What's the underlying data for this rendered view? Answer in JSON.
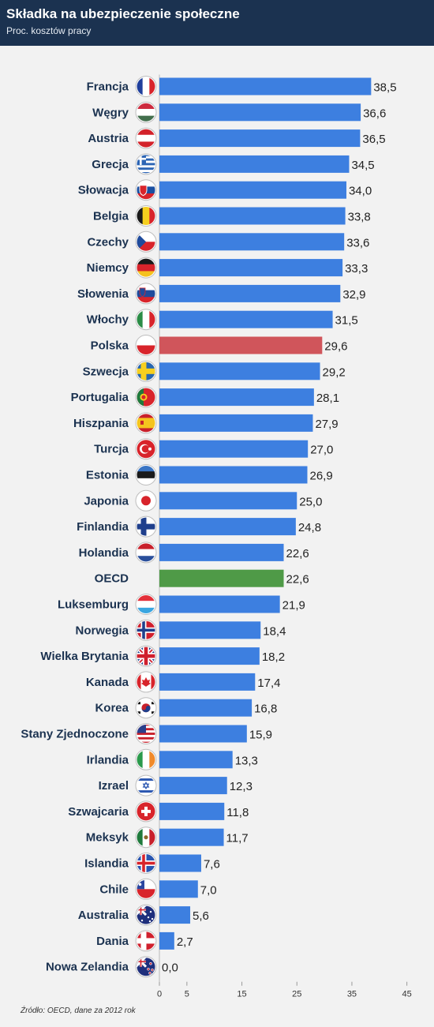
{
  "header": {
    "title": "Składka na ubezpieczenie społeczne",
    "subtitle": "Proc. kosztów pracy"
  },
  "footer": {
    "source": "Źródło: OECD, dane za 2012 rok"
  },
  "colors": {
    "bar": "#3d7fe0",
    "highlight_pl": "#d0555b",
    "highlight_oecd": "#4f9a47",
    "header_bg": "#1b3250"
  },
  "chart_data": {
    "type": "bar",
    "orientation": "horizontal",
    "categories": [
      "Francja",
      "Węgry",
      "Austria",
      "Grecja",
      "Słowacja",
      "Belgia",
      "Czechy",
      "Niemcy",
      "Słowenia",
      "Włochy",
      "Polska",
      "Szwecja",
      "Portugalia",
      "Hiszpania",
      "Turcja",
      "Estonia",
      "Japonia",
      "Finlandia",
      "Holandia",
      "OECD",
      "Luksemburg",
      "Norwegia",
      "Wielka Brytania",
      "Kanada",
      "Korea",
      "Stany Zjednoczone",
      "Irlandia",
      "Izrael",
      "Szwajcaria",
      "Meksyk",
      "Islandia",
      "Chile",
      "Australia",
      "Dania",
      "Nowa Zelandia"
    ],
    "values": [
      38.5,
      36.6,
      36.5,
      34.5,
      34.0,
      33.8,
      33.6,
      33.3,
      32.9,
      31.5,
      29.6,
      29.2,
      28.1,
      27.9,
      27.0,
      26.9,
      25.0,
      24.8,
      22.6,
      22.6,
      21.9,
      18.4,
      18.2,
      17.4,
      16.8,
      15.9,
      13.3,
      12.3,
      11.8,
      11.7,
      7.6,
      7.0,
      5.6,
      2.7,
      0.0
    ],
    "value_labels": [
      "38,5",
      "36,6",
      "36,5",
      "34,5",
      "34,0",
      "33,8",
      "33,6",
      "33,3",
      "32,9",
      "31,5",
      "29,6",
      "29,2",
      "28,1",
      "27,9",
      "27,0",
      "26,9",
      "25,0",
      "24,8",
      "22,6",
      "22,6",
      "21,9",
      "18,4",
      "18,2",
      "17,4",
      "16,8",
      "15,9",
      "13,3",
      "12,3",
      "11,8",
      "11,7",
      "7,6",
      "7,0",
      "5,6",
      "2,7",
      "0,0"
    ],
    "highlight": {
      "Polska": "highlight_pl",
      "OECD": "highlight_oecd"
    },
    "flags": [
      "flag-france-icon",
      "flag-hungary-icon",
      "flag-austria-icon",
      "flag-greece-icon",
      "flag-slovakia-icon",
      "flag-belgium-icon",
      "flag-czechia-icon",
      "flag-germany-icon",
      "flag-slovenia-icon",
      "flag-italy-icon",
      "flag-poland-icon",
      "flag-sweden-icon",
      "flag-portugal-icon",
      "flag-spain-icon",
      "flag-turkey-icon",
      "flag-estonia-icon",
      "flag-japan-icon",
      "flag-finland-icon",
      "flag-netherlands-icon",
      "",
      "flag-luxembourg-icon",
      "flag-norway-icon",
      "flag-uk-icon",
      "flag-canada-icon",
      "flag-korea-icon",
      "flag-usa-icon",
      "flag-ireland-icon",
      "flag-israel-icon",
      "flag-switzerland-icon",
      "flag-mexico-icon",
      "flag-iceland-icon",
      "flag-chile-icon",
      "flag-australia-icon",
      "flag-denmark-icon",
      "flag-new-zealand-icon"
    ],
    "x_ticks": [
      0,
      5,
      15,
      25,
      35,
      45
    ],
    "x_tick_labels": [
      "0",
      "5",
      "15",
      "25",
      "35",
      "45"
    ],
    "xlim": [
      0,
      45
    ],
    "grid": false,
    "title": "Składka na ubezpieczenie społeczne",
    "subtitle": "Proc. kosztów pracy"
  }
}
